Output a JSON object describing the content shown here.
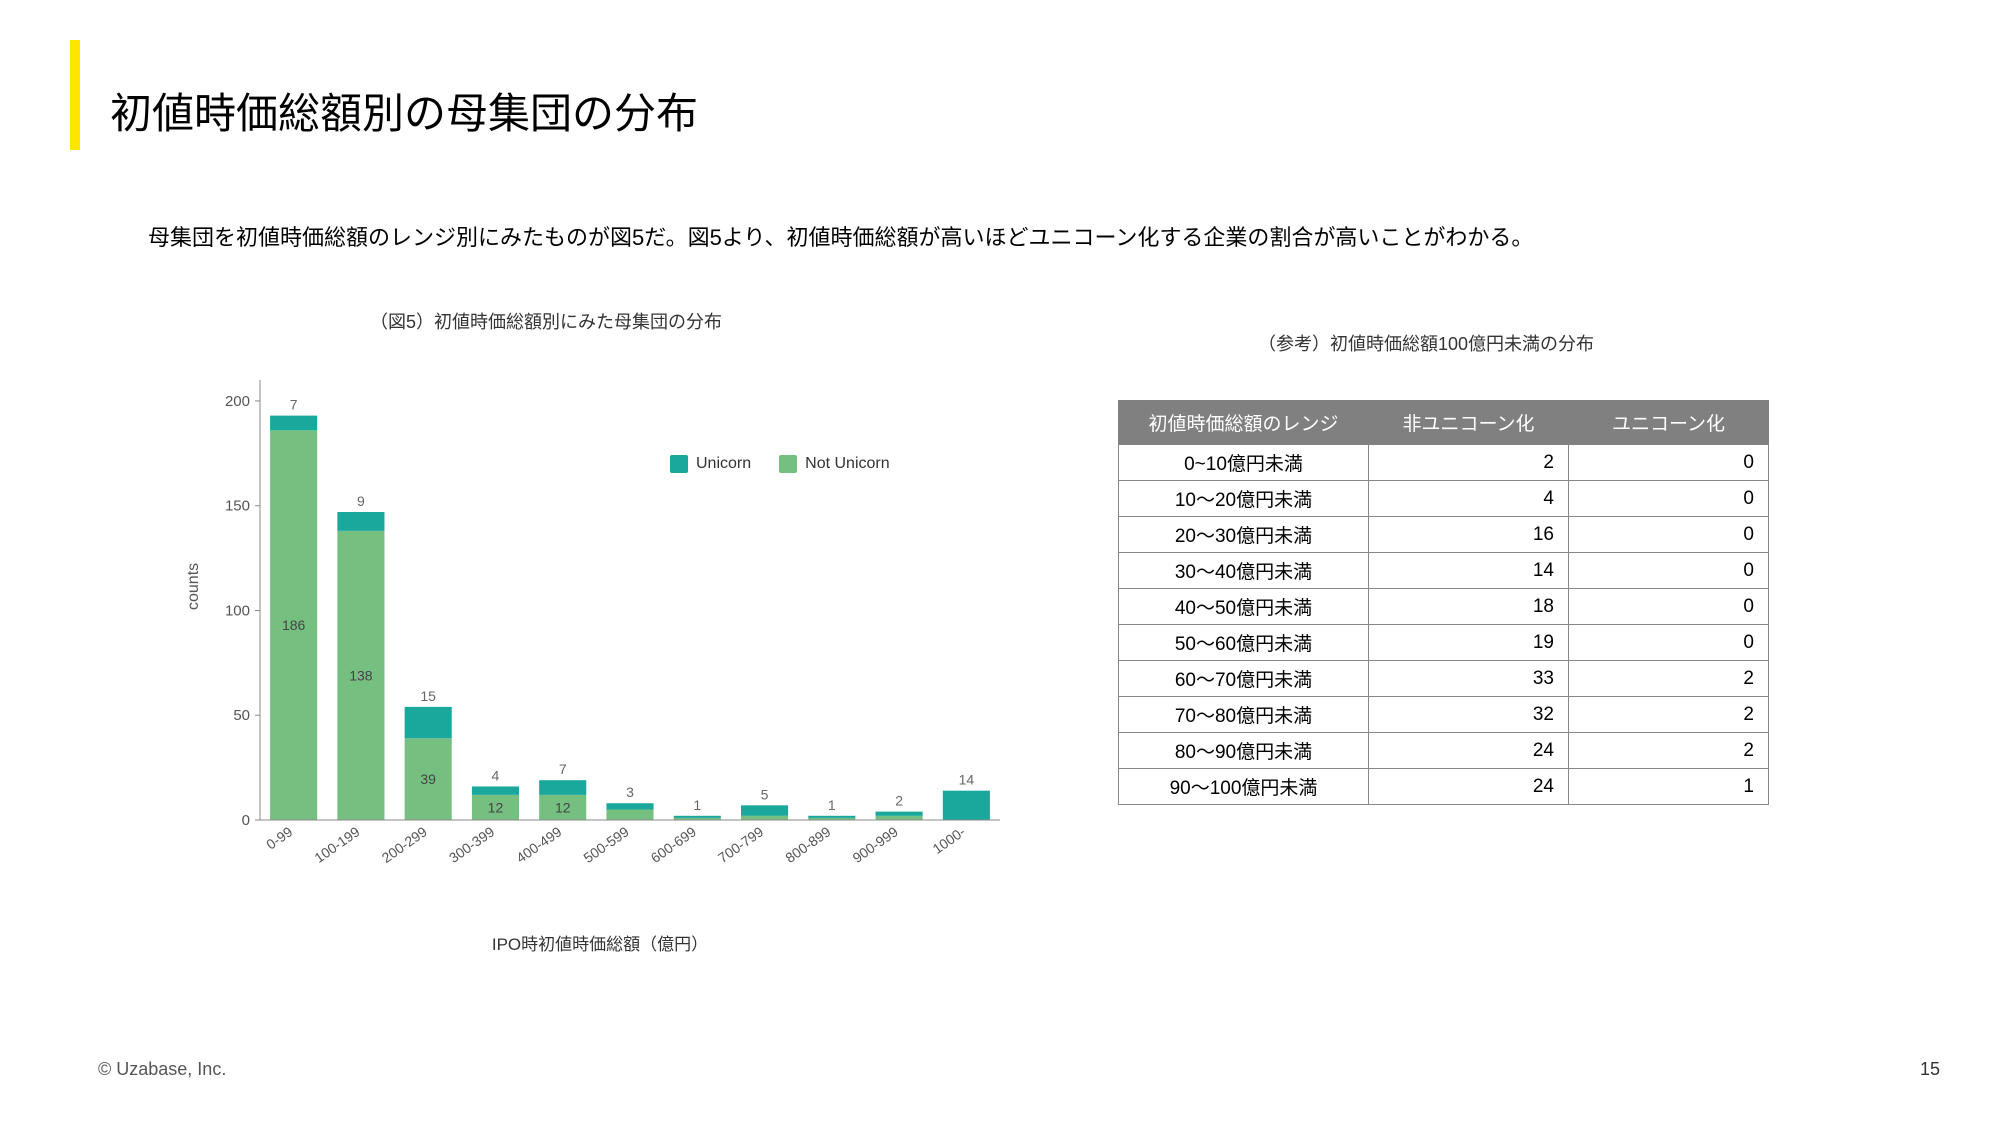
{
  "accent_color": "#ffe500",
  "title": "初値時価総額別の母集団の分布",
  "body_text": "母集団を初値時価総額のレンジ別にみたものが図5だ。図5より、初値時価総額が高いほどユニコーン化する企業の割合が高いことがわかる。",
  "chart": {
    "caption": "（図5）初値時価総額別にみた母集団の分布",
    "type": "stacked-bar",
    "y_label": "counts",
    "x_label": "IPO時初値時価総額（億円）",
    "y_ticks": [
      0,
      50,
      100,
      150,
      200
    ],
    "ylim": [
      0,
      210
    ],
    "categories": [
      "0-99",
      "100-199",
      "200-299",
      "300-399",
      "400-499",
      "500-599",
      "600-699",
      "700-799",
      "800-899",
      "900-999",
      "1000-"
    ],
    "series": [
      {
        "name": "Not Unicorn",
        "color": "#75c080",
        "values": [
          186,
          138,
          39,
          12,
          12,
          5,
          1,
          2,
          1,
          2,
          0
        ]
      },
      {
        "name": "Unicorn",
        "color": "#1aa79c",
        "values": [
          7,
          9,
          15,
          4,
          7,
          3,
          1,
          5,
          1,
          2,
          14
        ]
      }
    ],
    "legend": [
      {
        "label": "Unicorn",
        "color": "#1aa79c"
      },
      {
        "label": "Not Unicorn",
        "color": "#75c080"
      }
    ],
    "background_color": "#ffffff",
    "axis_color": "#888888",
    "bar_width_ratio": 0.7,
    "font_size": 14
  },
  "table": {
    "caption": "（参考）初値時価総額100億円未満の分布",
    "header_bg": "#808080",
    "header_fg": "#ffffff",
    "border_color": "#888888",
    "columns": [
      "初値時価総額のレンジ",
      "非ユニコーン化",
      "ユニコーン化"
    ],
    "rows": [
      [
        "0~10億円未満",
        "2",
        "0"
      ],
      [
        "10～20億円未満",
        "4",
        "0"
      ],
      [
        "20～30億円未満",
        "16",
        "0"
      ],
      [
        "30～40億円未満",
        "14",
        "0"
      ],
      [
        "40～50億円未満",
        "18",
        "0"
      ],
      [
        "50～60億円未満",
        "19",
        "0"
      ],
      [
        "60～70億円未満",
        "33",
        "2"
      ],
      [
        "70～80億円未満",
        "32",
        "2"
      ],
      [
        "80～90億円未満",
        "24",
        "2"
      ],
      [
        "90～100億円未満",
        "24",
        "1"
      ]
    ]
  },
  "footer": "© Uzabase, Inc.",
  "page_number": "15"
}
